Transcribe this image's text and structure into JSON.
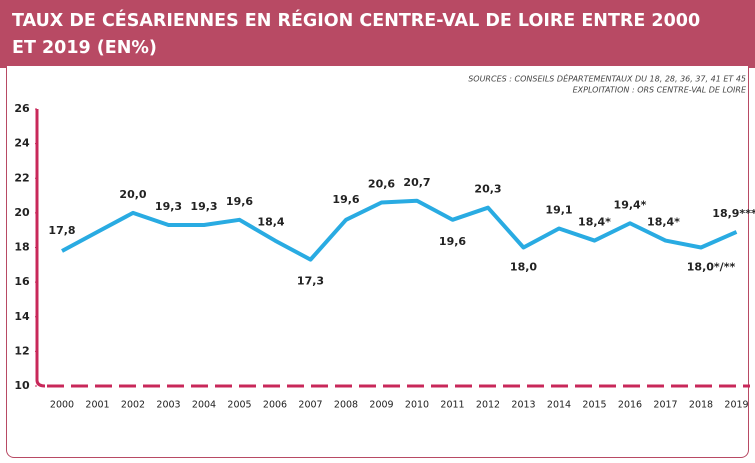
{
  "chart_data": {
    "type": "line",
    "title": "TAUX DE CÉSARIENNES EN RÉGION CENTRE-VAL DE LOIRE ENTRE 2000 ET 2019 (EN%)",
    "sources": [
      "SOURCES : CONSEILS DÉPARTEMENTAUX DU 18, 28, 36, 37, 41 ET 45",
      "EXPLOITATION : ORS CENTRE-VAL DE LOIRE"
    ],
    "categories": [
      "2000",
      "2001",
      "2002",
      "2003",
      "2004",
      "2005",
      "2006",
      "2007",
      "2008",
      "2009",
      "2010",
      "2011",
      "2012",
      "2013",
      "2014",
      "2015",
      "2016",
      "2017",
      "2018",
      "2019"
    ],
    "values": [
      17.8,
      18.9,
      20.0,
      19.3,
      19.3,
      19.6,
      18.4,
      17.3,
      19.6,
      20.6,
      20.7,
      19.6,
      20.3,
      18.0,
      19.1,
      18.4,
      19.4,
      18.4,
      18.0,
      18.9
    ],
    "value_labels": [
      "17,8",
      null,
      "20,0",
      "19,3",
      "19,3",
      "19,6",
      "18,4",
      "17,3",
      "19,6",
      "20,6",
      "20,7",
      "19,6",
      "20,3",
      "18,0",
      "19,1",
      "18,4*",
      "19,4*",
      "18,4*",
      "18,0*/**",
      "18,9***"
    ],
    "color": "#29abe2",
    "axis_color": "#c8285a",
    "ylim": [
      10,
      26
    ],
    "yticks": [
      10,
      12,
      14,
      16,
      18,
      20,
      22,
      24,
      26
    ]
  }
}
